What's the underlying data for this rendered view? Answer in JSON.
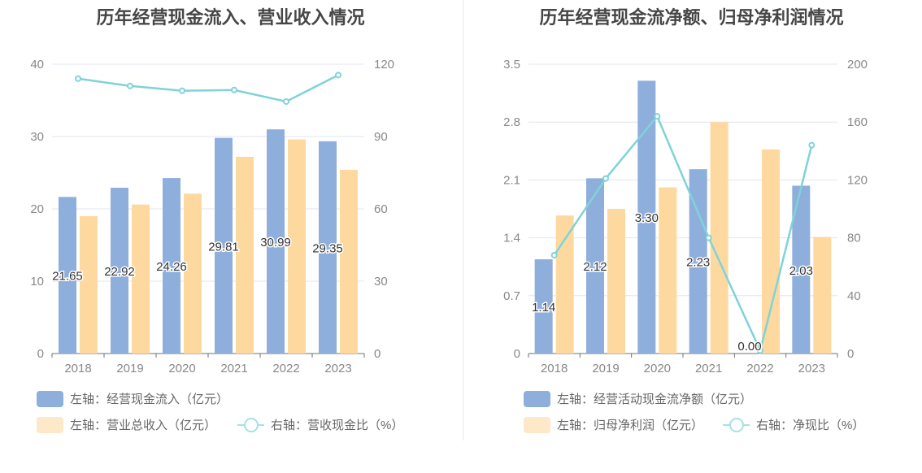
{
  "charts": {
    "left": {
      "title": "历年经营现金流入、营业收入情况",
      "legend": {
        "bar1": "左轴：经营现金流入（亿元）",
        "bar2": "左轴：营业总收入（亿元）",
        "line": "右轴：营收现金比（%）"
      }
    },
    "right": {
      "title": "历年经营现金流净额、归母净利润情况",
      "legend": {
        "bar1": "左轴：经营活动现金流净额（亿元）",
        "bar2": "左轴：归母净利润（亿元）",
        "line": "右轴：净现比（%）"
      }
    }
  },
  "colors": {
    "bar_blue": "#8eaedc",
    "bar_orange": "#fdd9a0",
    "line_teal": "#7fd3d8",
    "legend_blue": "#8eaedc",
    "legend_orange": "#fde8c7",
    "grid": "#e3e6ef",
    "axis_text": "#888888"
  },
  "chart_data": [
    {
      "type": "bar",
      "title": "历年经营现金流入、营业收入情况",
      "categories": [
        "2018",
        "2019",
        "2020",
        "2021",
        "2022",
        "2023"
      ],
      "y_left": {
        "ticks": [
          "0",
          "10",
          "20",
          "30",
          "40"
        ],
        "ylim": [
          0,
          40
        ]
      },
      "y_right": {
        "ticks": [
          "0",
          "30",
          "60",
          "90",
          "120"
        ],
        "ylim": [
          0,
          120
        ]
      },
      "series": [
        {
          "name": "左轴：经营现金流入（亿元）",
          "axis": "left",
          "type": "bar",
          "values": [
            21.65,
            22.92,
            24.26,
            29.81,
            30.99,
            29.35
          ],
          "labels": [
            "21.65",
            "22.92",
            "24.26",
            "29.81",
            "30.99",
            "29.35"
          ]
        },
        {
          "name": "左轴：营业总收入（亿元）",
          "axis": "left",
          "type": "bar",
          "values": [
            19.0,
            20.6,
            22.1,
            27.2,
            29.6,
            25.4
          ]
        },
        {
          "name": "右轴：营收现金比（%）",
          "axis": "right",
          "type": "line",
          "values": [
            114,
            111,
            109,
            109.3,
            104.5,
            115.5
          ]
        }
      ],
      "grid": true
    },
    {
      "type": "bar",
      "title": "历年经营现金流净额、归母净利润情况",
      "categories": [
        "2018",
        "2019",
        "2020",
        "2021",
        "2022",
        "2023"
      ],
      "y_left": {
        "ticks": [
          "0",
          "0.7",
          "1.4",
          "2.1",
          "2.8",
          "3.5"
        ],
        "ylim": [
          0,
          3.5
        ]
      },
      "y_right": {
        "ticks": [
          "0",
          "40",
          "80",
          "120",
          "160",
          "200"
        ],
        "ylim": [
          0,
          200
        ]
      },
      "series": [
        {
          "name": "左轴：经营活动现金流净额（亿元）",
          "axis": "left",
          "type": "bar",
          "values": [
            1.14,
            2.12,
            3.3,
            2.23,
            0.0,
            2.03
          ],
          "labels": [
            "1.14",
            "2.12",
            "3.30",
            "2.23",
            "0.00",
            "2.03"
          ]
        },
        {
          "name": "左轴：归母净利润（亿元）",
          "axis": "left",
          "type": "bar",
          "values": [
            1.67,
            1.75,
            2.01,
            2.8,
            2.47,
            1.41
          ]
        },
        {
          "name": "右轴：净现比（%）",
          "axis": "right",
          "type": "line",
          "values": [
            68,
            121,
            164,
            80,
            2,
            144
          ]
        }
      ],
      "grid": true
    }
  ]
}
